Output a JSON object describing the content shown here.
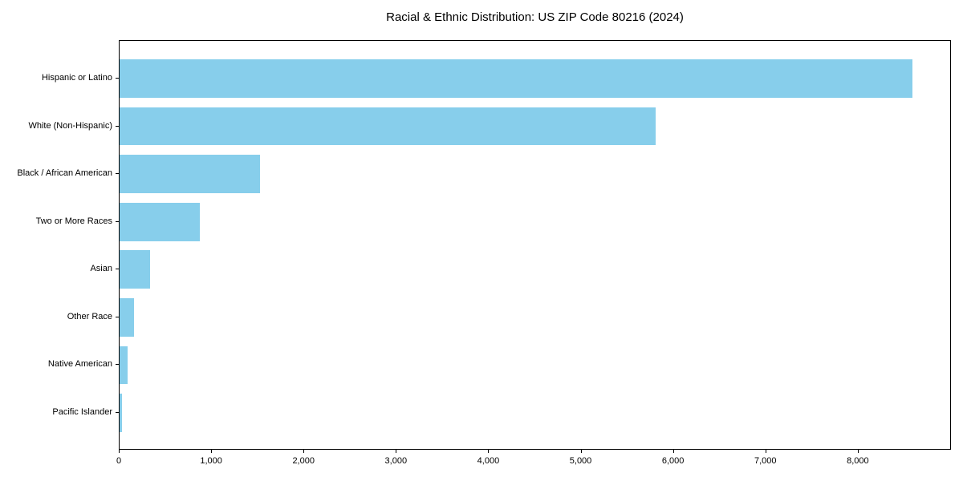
{
  "chart_data": {
    "type": "bar",
    "orientation": "horizontal",
    "title": "Racial & Ethnic Distribution: US ZIP Code 80216 (2024)",
    "categories": [
      "Hispanic or Latino",
      "White (Non-Hispanic)",
      "Black / African American",
      "Two or More Races",
      "Asian",
      "Other Race",
      "Native American",
      "Pacific Islander"
    ],
    "values": [
      8580,
      5800,
      1520,
      870,
      330,
      155,
      90,
      25
    ],
    "xlabel": "",
    "ylabel": "",
    "xlim": [
      0,
      9009
    ],
    "xticks": [
      0,
      1000,
      2000,
      3000,
      4000,
      5000,
      6000,
      7000,
      8000
    ],
    "xtick_labels": [
      "0",
      "1,000",
      "2,000",
      "3,000",
      "4,000",
      "5,000",
      "6,000",
      "7,000",
      "8,000"
    ],
    "bar_color": "#87CEEB",
    "text_color": "#000000",
    "grid": false,
    "legend": null
  }
}
